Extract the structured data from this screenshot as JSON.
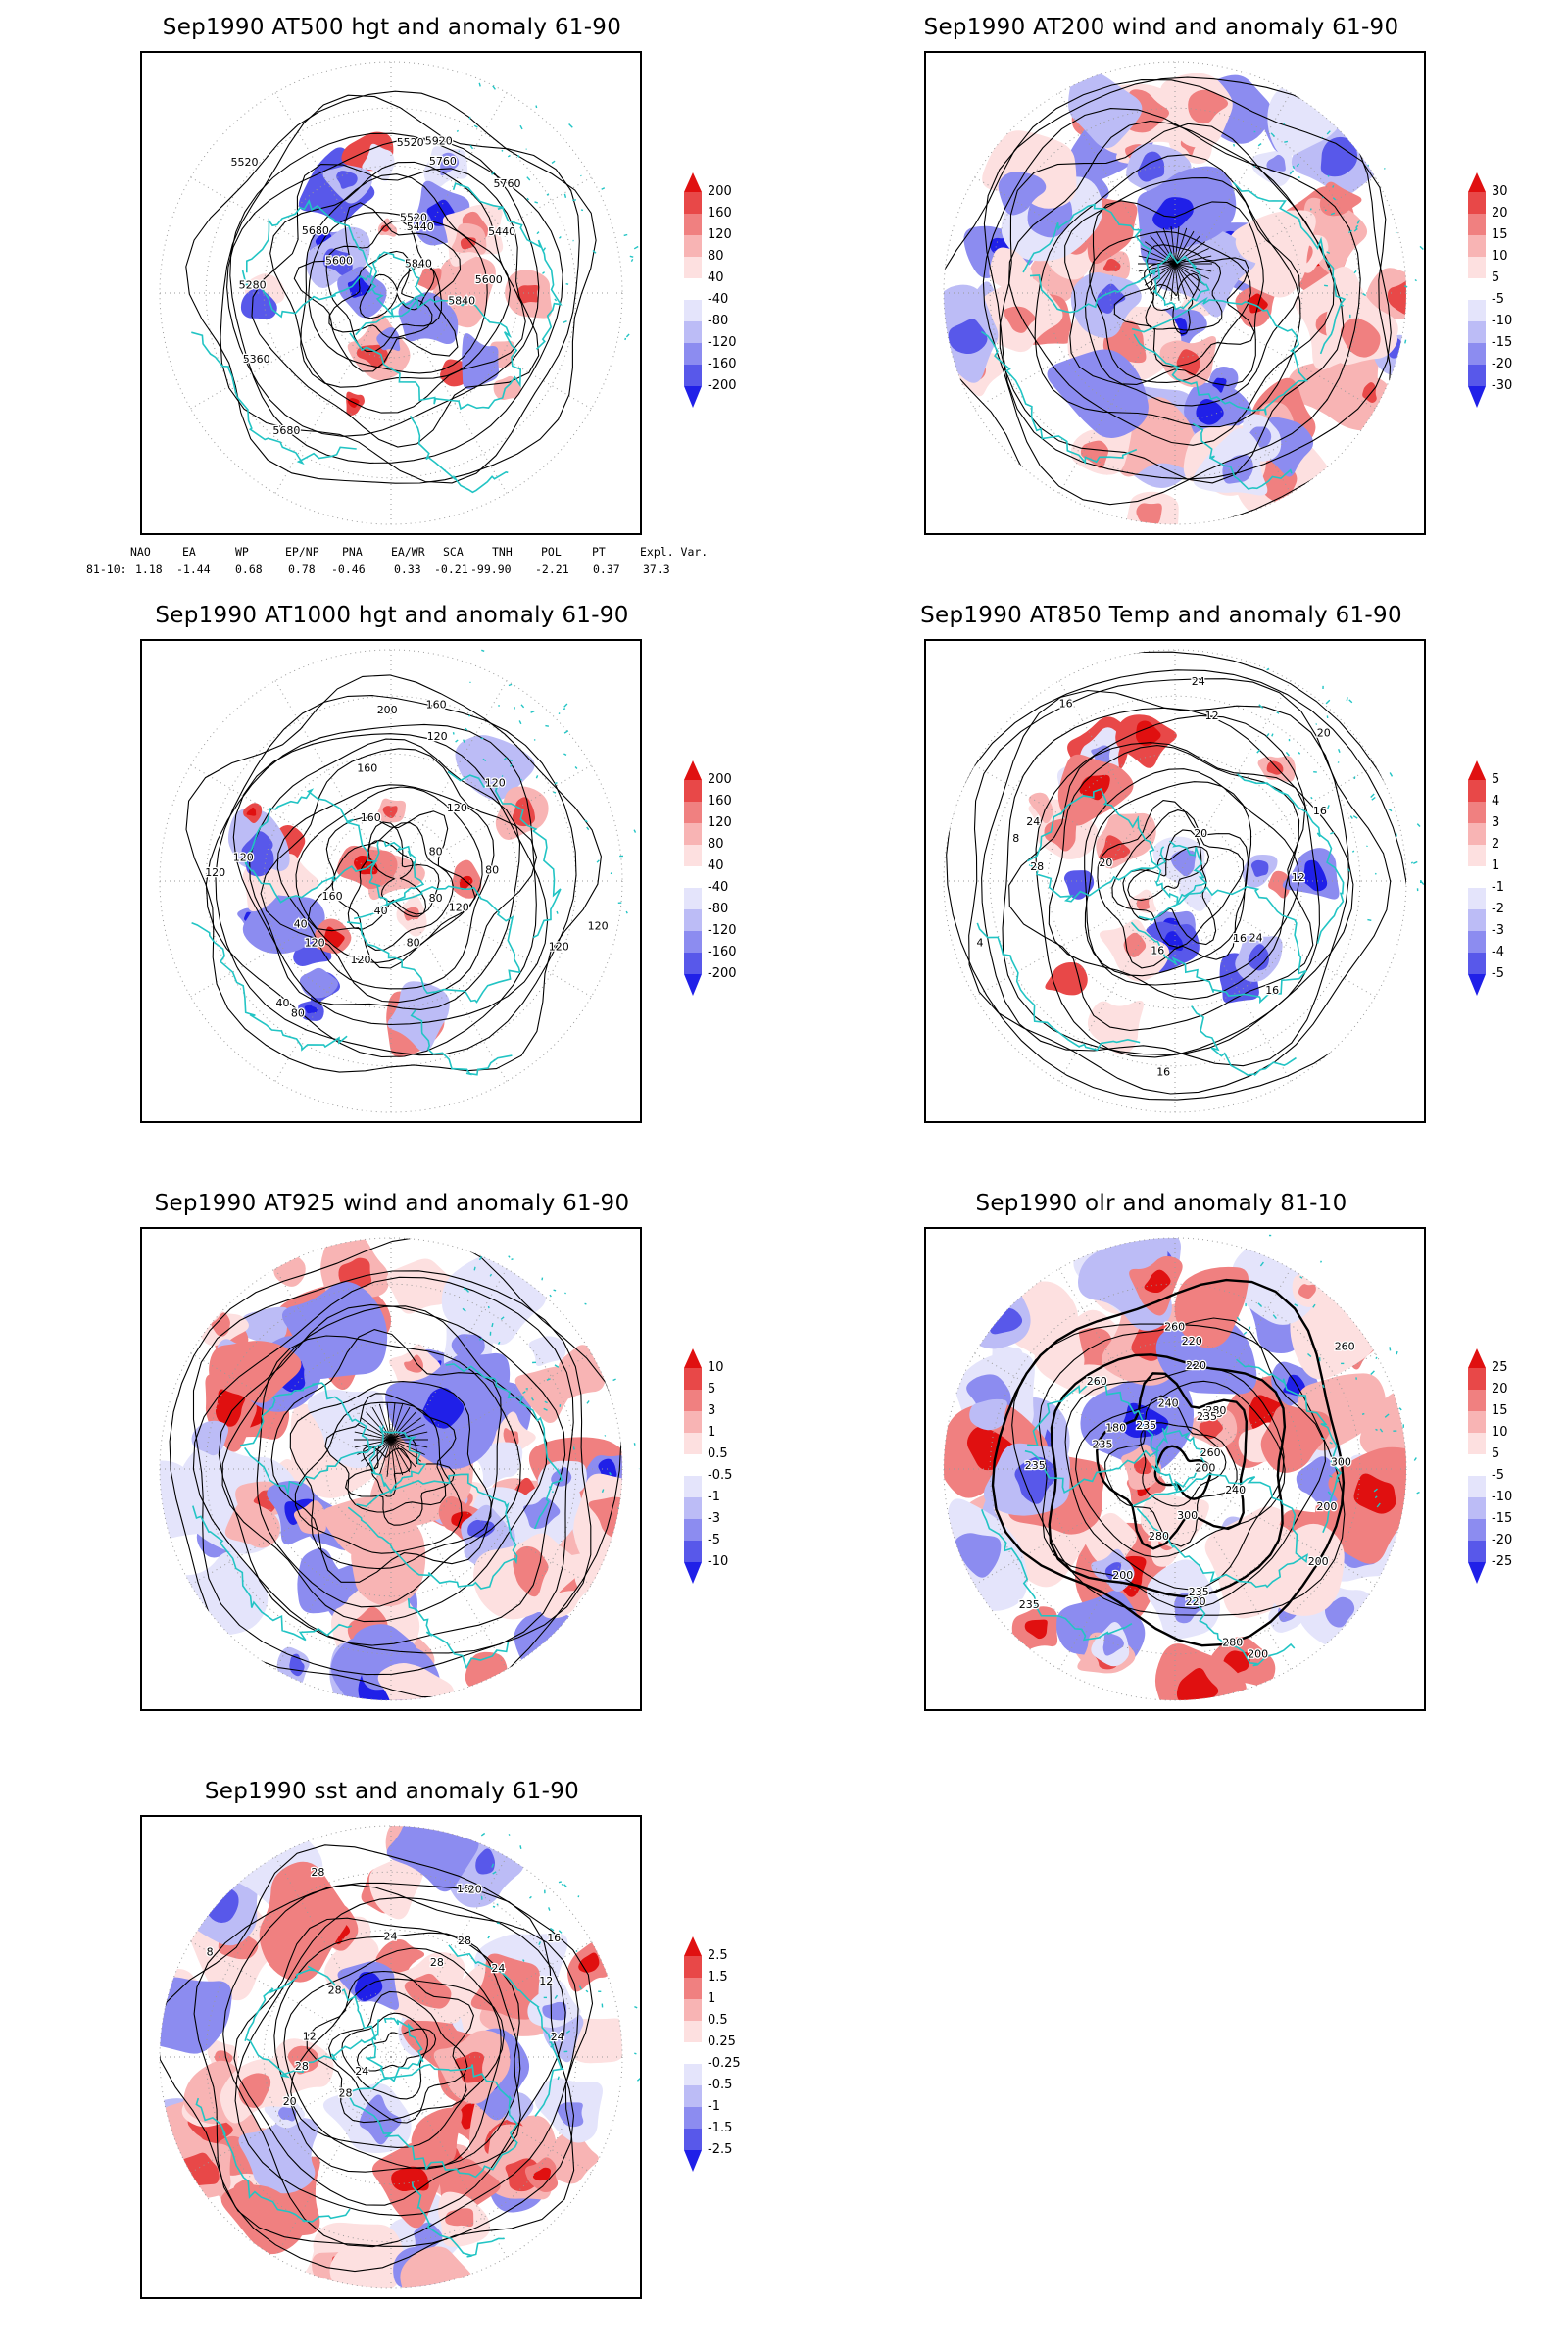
{
  "panels": [
    {
      "id": "p1",
      "title": "Sep1990 AT500 hgt and anomaly 61-90",
      "kind": "hgt",
      "colorbar": [
        "200",
        "160",
        "120",
        "80",
        "40",
        "-40",
        "-80",
        "-120",
        "-160",
        "-200"
      ],
      "contour_labels": [
        "5920",
        "5840",
        "5760",
        "5680",
        "5600",
        "5520",
        "5440",
        "5360",
        "5280",
        "5520",
        "5440",
        "5520",
        "5600",
        "5680",
        "5760",
        "5840"
      ]
    },
    {
      "id": "p2",
      "title": "Sep1990 AT200 wind and anomaly 61-90",
      "kind": "wind",
      "colorbar": [
        "30",
        "20",
        "15",
        "10",
        "5",
        "-5",
        "-10",
        "-15",
        "-20",
        "-30"
      ],
      "contour_labels": []
    },
    {
      "id": "p3",
      "title": "Sep1990 AT1000 hgt and anomaly 61-90",
      "kind": "hgt",
      "colorbar": [
        "200",
        "160",
        "120",
        "80",
        "40",
        "-40",
        "-80",
        "-120",
        "-160",
        "-200"
      ],
      "contour_labels": [
        "120",
        "80",
        "160",
        "120",
        "80",
        "40",
        "120",
        "160",
        "120",
        "80",
        "40",
        "120",
        "160",
        "200",
        "160",
        "120",
        "40",
        "80",
        "120",
        "120",
        "80",
        "120",
        "120"
      ]
    },
    {
      "id": "p4",
      "title": "Sep1990 AT850 Temp and anomaly 61-90",
      "kind": "temp",
      "colorbar": [
        "5",
        "4",
        "3",
        "2",
        "1",
        "-1",
        "-2",
        "-3",
        "-4",
        "-5"
      ],
      "contour_labels": [
        "16",
        "12",
        "16",
        "8",
        "20",
        "4",
        "24",
        "16",
        "12",
        "20",
        "24",
        "28",
        "16",
        "24",
        "20",
        "16",
        "16"
      ]
    },
    {
      "id": "p5",
      "title": "Sep1990 AT925 wind and anomaly 61-90",
      "kind": "wind",
      "colorbar": [
        "10",
        "5",
        "3",
        "1",
        "0.5",
        "-0.5",
        "-1",
        "-3",
        "-5",
        "-10"
      ],
      "contour_labels": []
    },
    {
      "id": "p6",
      "title": "Sep1990 olr and anomaly 81-10",
      "kind": "olr",
      "colorbar": [
        "25",
        "20",
        "15",
        "10",
        "5",
        "-5",
        "-10",
        "-15",
        "-20",
        "-25"
      ],
      "contour_labels": [
        "235",
        "235",
        "220",
        "200",
        "235",
        "260",
        "280",
        "260",
        "235",
        "200",
        "220",
        "240",
        "260",
        "200",
        "180",
        "200",
        "235",
        "280",
        "300",
        "240",
        "235",
        "260",
        "280",
        "300",
        "235",
        "220",
        "200"
      ]
    },
    {
      "id": "p7",
      "title": "Sep1990 sst and anomaly 61-90",
      "kind": "sst",
      "colorbar": [
        "2.5",
        "1.5",
        "1",
        "0.5",
        "0.25",
        "-0.25",
        "-0.5",
        "-1",
        "-1.5",
        "-2.5"
      ],
      "contour_labels": [
        "28",
        "28",
        "24",
        "28",
        "24",
        "20",
        "16",
        "12",
        "8",
        "24",
        "28",
        "16",
        "12",
        "20",
        "24",
        "28",
        "28"
      ]
    }
  ],
  "indices": {
    "headers": [
      "NAO",
      "EA",
      "WP",
      "EP/NP",
      "PNA",
      "EA/WR",
      "SCA",
      "TNH",
      "POL",
      "PT",
      "Expl. Var."
    ],
    "row_label": "81-10:",
    "values": [
      "1.18",
      "-1.44",
      "0.68",
      "0.78",
      "-0.46",
      "0.33",
      "-0.21",
      "-99.90",
      "-2.21",
      "0.37",
      "37.3"
    ]
  },
  "colors": {
    "coast": "#22c4c4",
    "contour": "#000000",
    "grid": "#9a9a9a",
    "warm": [
      "#fde0e0",
      "#f8b4b4",
      "#f08080",
      "#e84848",
      "#e01010"
    ],
    "cool": [
      "#e4e4fb",
      "#bcbcf6",
      "#8c8cf0",
      "#5858ea",
      "#2020e8"
    ]
  }
}
